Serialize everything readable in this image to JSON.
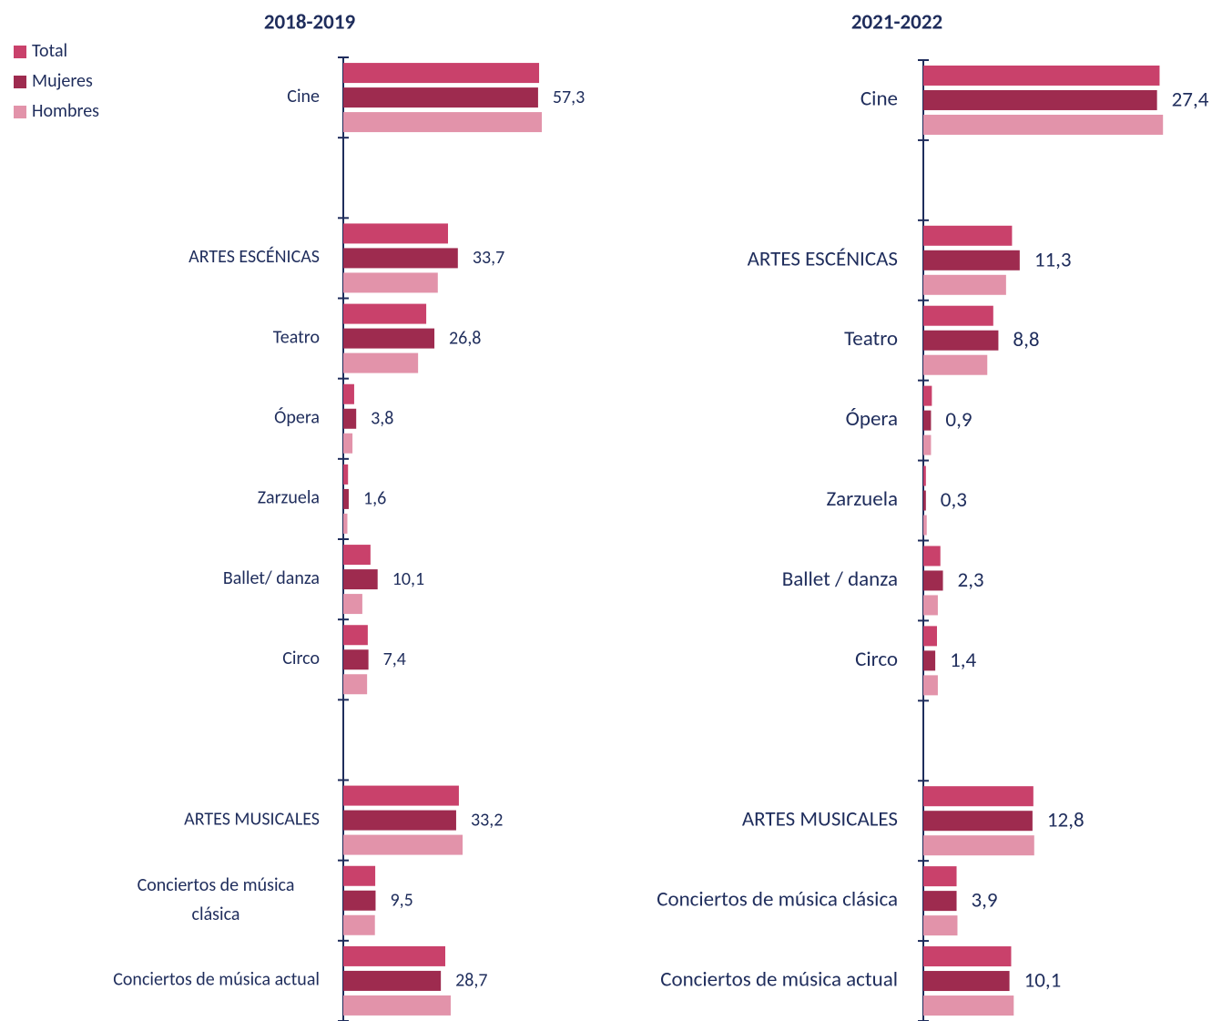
{
  "chart_data": [
    {
      "type": "bar",
      "orientation": "horizontal",
      "title": "2018-2019",
      "legend": "top-left",
      "categories": [
        "Cine",
        null,
        "ARTES ESCÉNICAS",
        "Teatro",
        "Ópera",
        "Zarzuela",
        "Ballet/ danza",
        "Circo",
        null,
        "ARTES MUSICALES",
        "Conciertos de música clásica",
        "Conciertos de música actual"
      ],
      "xlim": [
        0,
        60
      ],
      "series": [
        {
          "name": "Total",
          "color": "#c9416b",
          "values": [
            57.6,
            null,
            30.8,
            24.4,
            3.2,
            1.4,
            8.0,
            7.2,
            null,
            34.0,
            9.4,
            30.0
          ]
        },
        {
          "name": "Mujeres",
          "color": "#9e2b4f",
          "values": [
            57.3,
            null,
            33.7,
            26.8,
            3.8,
            1.6,
            10.1,
            7.4,
            null,
            33.2,
            9.5,
            28.7
          ],
          "value_labels": [
            "57,3",
            null,
            "33,7",
            "26,8",
            "3,8",
            "1,6",
            "10,1",
            "7,4",
            null,
            "33,2",
            "9,5",
            "28,7"
          ]
        },
        {
          "name": "Hombres",
          "color": "#e293aa",
          "values": [
            58.4,
            null,
            27.8,
            22.0,
            2.7,
            1.2,
            5.6,
            7.0,
            null,
            35.1,
            9.3,
            31.6
          ]
        }
      ]
    },
    {
      "type": "bar",
      "orientation": "horizontal",
      "title": "2021-2022",
      "categories": [
        "Cine",
        null,
        "ARTES ESCÉNICAS",
        "Teatro",
        "Ópera",
        "Zarzuela",
        "Ballet / danza",
        "Circo",
        null,
        "ARTES MUSICALES",
        "Conciertos de música clásica",
        "Conciertos de música actual"
      ],
      "xlim": [
        0,
        30
      ],
      "series": [
        {
          "name": "Total",
          "color": "#c9416b",
          "values": [
            27.7,
            null,
            10.4,
            8.2,
            1.0,
            0.3,
            2.0,
            1.6,
            null,
            12.9,
            3.9,
            10.3
          ]
        },
        {
          "name": "Mujeres",
          "color": "#9e2b4f",
          "values": [
            27.4,
            null,
            11.3,
            8.8,
            0.9,
            0.3,
            2.3,
            1.4,
            null,
            12.8,
            3.9,
            10.1
          ],
          "value_labels": [
            "27,4",
            null,
            "11,3",
            "8,8",
            "0,9",
            "0,3",
            "2,3",
            "1,4",
            null,
            "12,8",
            "3,9",
            "10,1"
          ]
        },
        {
          "name": "Hombres",
          "color": "#e293aa",
          "values": [
            28.1,
            null,
            9.7,
            7.5,
            0.9,
            0.4,
            1.7,
            1.7,
            null,
            13.0,
            4.0,
            10.6
          ]
        }
      ]
    }
  ]
}
